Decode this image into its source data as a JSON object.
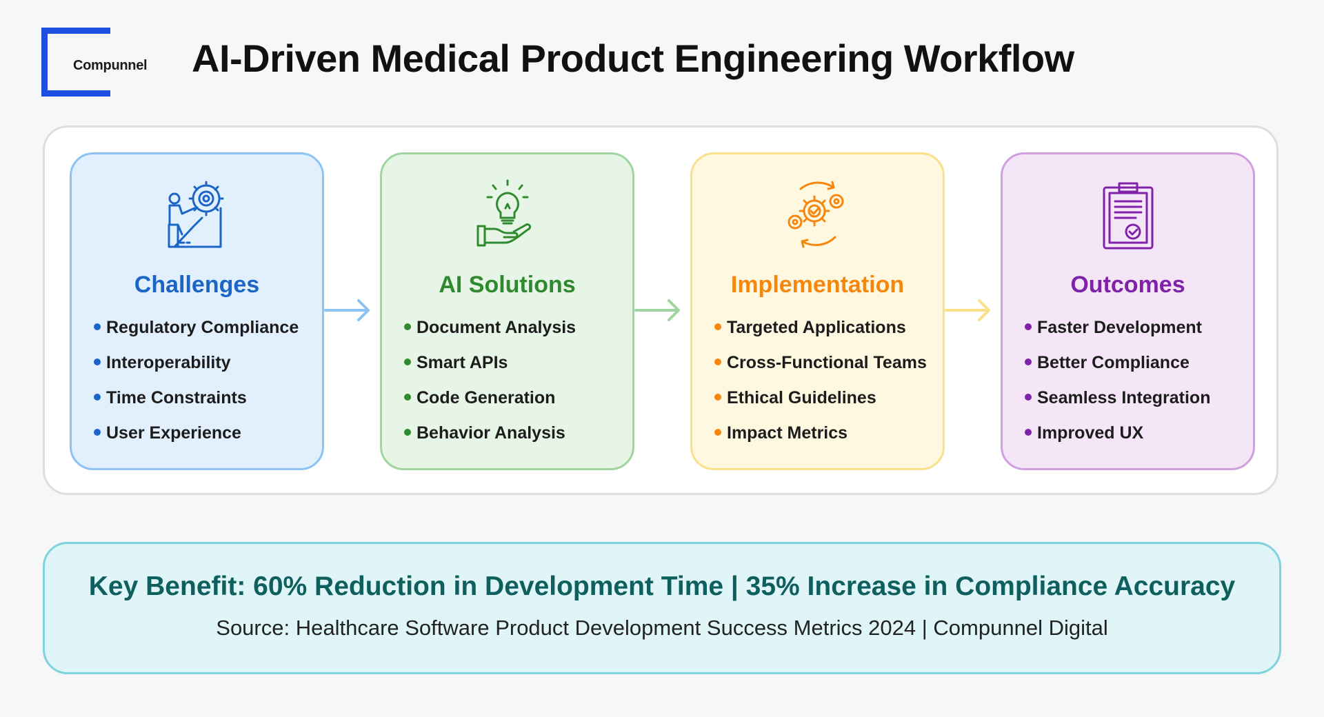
{
  "brand": {
    "name": "Compunnel",
    "color": "#1f4fe0"
  },
  "title": "AI-Driven Medical Product Engineering Workflow",
  "stages": [
    {
      "title": "Challenges",
      "icon": "engineer-gear-icon",
      "accent": "#1b65c7",
      "background": "#e2f0fd",
      "border": "#8cc3f2",
      "items": [
        "Regulatory Compliance",
        "Interoperability",
        "Time Constraints",
        "User Experience"
      ]
    },
    {
      "title": "AI Solutions",
      "icon": "lightbulb-hand-icon",
      "accent": "#2f8a2f",
      "background": "#e7f5e7",
      "border": "#9fd59f",
      "items": [
        "Document Analysis",
        "Smart APIs",
        "Code Generation",
        "Behavior Analysis"
      ]
    },
    {
      "title": "Implementation",
      "icon": "gears-cycle-icon",
      "accent": "#f5870f",
      "background": "#fef8e1",
      "border": "#fbe08a",
      "items": [
        "Targeted Applications",
        "Cross-Functional Teams",
        "Ethical Guidelines",
        "Impact Metrics"
      ]
    },
    {
      "title": "Outcomes",
      "icon": "clipboard-check-icon",
      "accent": "#7f22a8",
      "background": "#f4e6f7",
      "border": "#cf9fdf",
      "items": [
        "Faster Development",
        "Better Compliance",
        "Seamless Integration",
        "Improved UX"
      ]
    }
  ],
  "arrows": [
    {
      "color": "#8cc3f2"
    },
    {
      "color": "#9fd59f"
    },
    {
      "color": "#fbe08a"
    }
  ],
  "benefit": {
    "text": "Key Benefit: 60% Reduction in Development Time | 35% Increase in Compliance Accuracy",
    "source": "Source: Healthcare Software Product Development Success Metrics 2024 | Compunnel Digital"
  }
}
